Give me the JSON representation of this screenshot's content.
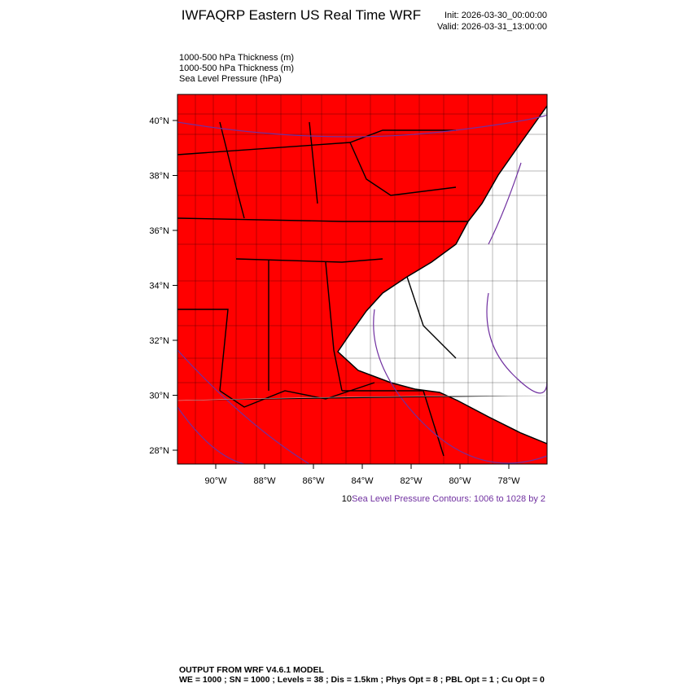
{
  "header": {
    "title": "IWFAQRP Eastern US Real Time WRF",
    "init": "Init: 2026-03-30_00:00:00",
    "valid": "Valid: 2026-03-31_13:00:00"
  },
  "fields": [
    "1000-500 hPa Thickness   (m)",
    "1000-500 hPa Thickness   (m)",
    "Sea Level Pressure   (hPa)"
  ],
  "lat_labels": [
    "40°N",
    "38°N",
    "36°N",
    "34°N",
    "32°N",
    "30°N",
    "28°N"
  ],
  "lon_labels": [
    "90°W",
    "88°W",
    "86°W",
    "84°W",
    "82°W",
    "80°W",
    "78°W"
  ],
  "contour_note": {
    "prefix": "10",
    "text": "Sea Level Pressure Contours: 1006 to 1028 by 2"
  },
  "footer": {
    "line1": "OUTPUT FROM WRF V4.6.1 MODEL",
    "line2": "WE = 1000 ; SN = 1000 ; Levels = 38 ; Dis = 1.5km ; Phys Opt = 8 ; PBL Opt = 1 ; Cu Opt = 0"
  }
}
